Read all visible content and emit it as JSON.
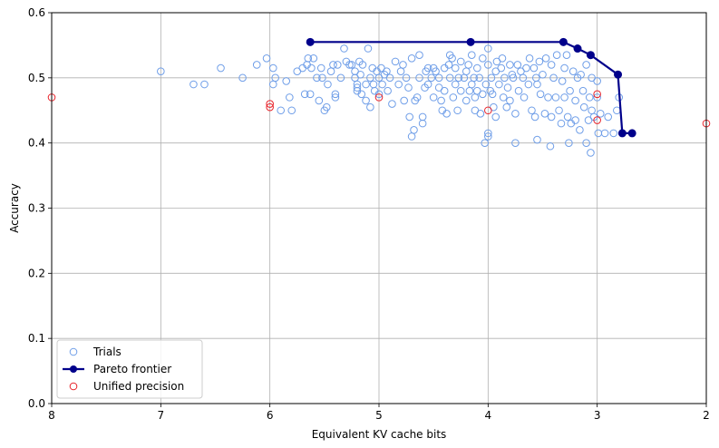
{
  "chart_data": {
    "type": "scatter",
    "title": "",
    "xlabel": "Equivalent KV cache bits",
    "ylabel": "Accuracy",
    "xlim": [
      8,
      2
    ],
    "ylim": [
      0,
      0.6
    ],
    "x_reversed": true,
    "grid": true,
    "legend_position": "bottom-left",
    "x_ticks": [
      8,
      7,
      6,
      5,
      4,
      3,
      2
    ],
    "y_ticks": [
      0.0,
      0.1,
      0.2,
      0.3,
      0.4,
      0.5,
      0.6
    ],
    "x_tick_labels": [
      "8",
      "7",
      "6",
      "5",
      "4",
      "3",
      "2"
    ],
    "y_tick_labels": [
      "0.0",
      "0.1",
      "0.2",
      "0.3",
      "0.4",
      "0.5",
      "0.6"
    ],
    "series": [
      {
        "name": "Trials",
        "style": "hollow-circle",
        "color": "#6f9ee8",
        "points": [
          [
            7.0,
            0.51
          ],
          [
            6.7,
            0.49
          ],
          [
            6.6,
            0.49
          ],
          [
            6.45,
            0.515
          ],
          [
            6.25,
            0.5
          ],
          [
            6.12,
            0.52
          ],
          [
            6.03,
            0.53
          ],
          [
            5.97,
            0.515
          ],
          [
            5.97,
            0.49
          ],
          [
            5.95,
            0.5
          ],
          [
            5.9,
            0.45
          ],
          [
            5.85,
            0.495
          ],
          [
            5.82,
            0.47
          ],
          [
            5.8,
            0.45
          ],
          [
            5.75,
            0.51
          ],
          [
            5.7,
            0.515
          ],
          [
            5.68,
            0.475
          ],
          [
            5.66,
            0.52
          ],
          [
            5.65,
            0.53
          ],
          [
            5.63,
            0.475
          ],
          [
            5.62,
            0.515
          ],
          [
            5.6,
            0.53
          ],
          [
            5.57,
            0.5
          ],
          [
            5.55,
            0.465
          ],
          [
            5.53,
            0.515
          ],
          [
            5.52,
            0.5
          ],
          [
            5.5,
            0.45
          ],
          [
            5.48,
            0.455
          ],
          [
            5.47,
            0.49
          ],
          [
            5.44,
            0.51
          ],
          [
            5.42,
            0.52
          ],
          [
            5.4,
            0.475
          ],
          [
            5.4,
            0.47
          ],
          [
            5.38,
            0.52
          ],
          [
            5.35,
            0.5
          ],
          [
            5.32,
            0.545
          ],
          [
            5.3,
            0.525
          ],
          [
            5.27,
            0.52
          ],
          [
            5.25,
            0.52
          ],
          [
            5.22,
            0.51
          ],
          [
            5.22,
            0.5
          ],
          [
            5.2,
            0.49
          ],
          [
            5.2,
            0.48
          ],
          [
            5.2,
            0.485
          ],
          [
            5.18,
            0.525
          ],
          [
            5.17,
            0.505
          ],
          [
            5.16,
            0.475
          ],
          [
            5.15,
            0.52
          ],
          [
            5.12,
            0.49
          ],
          [
            5.12,
            0.465
          ],
          [
            5.1,
            0.545
          ],
          [
            5.08,
            0.5
          ],
          [
            5.08,
            0.455
          ],
          [
            5.06,
            0.515
          ],
          [
            5.05,
            0.49
          ],
          [
            5.04,
            0.48
          ],
          [
            5.02,
            0.51
          ],
          [
            5.0,
            0.475
          ],
          [
            5.0,
            0.5
          ],
          [
            4.98,
            0.515
          ],
          [
            4.97,
            0.49
          ],
          [
            4.95,
            0.505
          ],
          [
            4.93,
            0.51
          ],
          [
            4.92,
            0.48
          ],
          [
            4.9,
            0.5
          ],
          [
            4.88,
            0.46
          ],
          [
            4.85,
            0.525
          ],
          [
            4.82,
            0.49
          ],
          [
            4.8,
            0.51
          ],
          [
            4.78,
            0.52
          ],
          [
            4.77,
            0.465
          ],
          [
            4.75,
            0.5
          ],
          [
            4.73,
            0.485
          ],
          [
            4.72,
            0.44
          ],
          [
            4.7,
            0.53
          ],
          [
            4.7,
            0.41
          ],
          [
            4.68,
            0.42
          ],
          [
            4.67,
            0.465
          ],
          [
            4.65,
            0.47
          ],
          [
            4.63,
            0.535
          ],
          [
            4.63,
            0.5
          ],
          [
            4.6,
            0.43
          ],
          [
            4.6,
            0.44
          ],
          [
            4.58,
            0.485
          ],
          [
            4.57,
            0.51
          ],
          [
            4.55,
            0.515
          ],
          [
            4.55,
            0.49
          ],
          [
            4.52,
            0.5
          ],
          [
            4.5,
            0.47
          ],
          [
            4.5,
            0.515
          ],
          [
            4.48,
            0.51
          ],
          [
            4.45,
            0.5
          ],
          [
            4.45,
            0.485
          ],
          [
            4.43,
            0.465
          ],
          [
            4.42,
            0.45
          ],
          [
            4.4,
            0.515
          ],
          [
            4.4,
            0.48
          ],
          [
            4.38,
            0.445
          ],
          [
            4.36,
            0.52
          ],
          [
            4.35,
            0.535
          ],
          [
            4.35,
            0.5
          ],
          [
            4.33,
            0.53
          ],
          [
            4.32,
            0.47
          ],
          [
            4.3,
            0.515
          ],
          [
            4.3,
            0.49
          ],
          [
            4.28,
            0.45
          ],
          [
            4.27,
            0.5
          ],
          [
            4.25,
            0.525
          ],
          [
            4.25,
            0.48
          ],
          [
            4.22,
            0.5
          ],
          [
            4.2,
            0.51
          ],
          [
            4.2,
            0.465
          ],
          [
            4.18,
            0.52
          ],
          [
            4.17,
            0.48
          ],
          [
            4.15,
            0.535
          ],
          [
            4.15,
            0.49
          ],
          [
            4.13,
            0.5
          ],
          [
            4.12,
            0.45
          ],
          [
            4.12,
            0.47
          ],
          [
            4.1,
            0.515
          ],
          [
            4.1,
            0.48
          ],
          [
            4.08,
            0.5
          ],
          [
            4.07,
            0.445
          ],
          [
            4.05,
            0.53
          ],
          [
            4.05,
            0.475
          ],
          [
            4.03,
            0.4
          ],
          [
            4.02,
            0.49
          ],
          [
            4.0,
            0.545
          ],
          [
            4.0,
            0.52
          ],
          [
            4.0,
            0.41
          ],
          [
            4.0,
            0.415
          ],
          [
            3.98,
            0.48
          ],
          [
            3.97,
            0.5
          ],
          [
            3.96,
            0.475
          ],
          [
            3.95,
            0.455
          ],
          [
            3.93,
            0.51
          ],
          [
            3.93,
            0.44
          ],
          [
            3.92,
            0.525
          ],
          [
            3.9,
            0.49
          ],
          [
            3.88,
            0.515
          ],
          [
            3.87,
            0.53
          ],
          [
            3.86,
            0.47
          ],
          [
            3.85,
            0.5
          ],
          [
            3.83,
            0.455
          ],
          [
            3.82,
            0.485
          ],
          [
            3.8,
            0.52
          ],
          [
            3.8,
            0.465
          ],
          [
            3.78,
            0.505
          ],
          [
            3.77,
            0.5
          ],
          [
            3.75,
            0.4
          ],
          [
            3.75,
            0.445
          ],
          [
            3.73,
            0.52
          ],
          [
            3.72,
            0.48
          ],
          [
            3.7,
            0.51
          ],
          [
            3.68,
            0.5
          ],
          [
            3.67,
            0.47
          ],
          [
            3.65,
            0.515
          ],
          [
            3.63,
            0.49
          ],
          [
            3.62,
            0.53
          ],
          [
            3.6,
            0.45
          ],
          [
            3.58,
            0.515
          ],
          [
            3.57,
            0.44
          ],
          [
            3.56,
            0.5
          ],
          [
            3.55,
            0.49
          ],
          [
            3.55,
            0.405
          ],
          [
            3.53,
            0.525
          ],
          [
            3.52,
            0.475
          ],
          [
            3.5,
            0.505
          ],
          [
            3.48,
            0.445
          ],
          [
            3.47,
            0.53
          ],
          [
            3.45,
            0.47
          ],
          [
            3.43,
            0.395
          ],
          [
            3.42,
            0.52
          ],
          [
            3.42,
            0.44
          ],
          [
            3.4,
            0.5
          ],
          [
            3.38,
            0.47
          ],
          [
            3.37,
            0.535
          ],
          [
            3.35,
            0.45
          ],
          [
            3.33,
            0.43
          ],
          [
            3.32,
            0.495
          ],
          [
            3.3,
            0.515
          ],
          [
            3.3,
            0.47
          ],
          [
            3.28,
            0.535
          ],
          [
            3.27,
            0.44
          ],
          [
            3.26,
            0.4
          ],
          [
            3.25,
            0.48
          ],
          [
            3.24,
            0.43
          ],
          [
            3.22,
            0.51
          ],
          [
            3.2,
            0.465
          ],
          [
            3.2,
            0.435
          ],
          [
            3.18,
            0.5
          ],
          [
            3.16,
            0.42
          ],
          [
            3.15,
            0.505
          ],
          [
            3.13,
            0.48
          ],
          [
            3.12,
            0.455
          ],
          [
            3.1,
            0.52
          ],
          [
            3.1,
            0.4
          ],
          [
            3.08,
            0.435
          ],
          [
            3.07,
            0.47
          ],
          [
            3.06,
            0.385
          ],
          [
            3.05,
            0.45
          ],
          [
            3.05,
            0.5
          ],
          [
            3.03,
            0.44
          ],
          [
            3.0,
            0.495
          ],
          [
            3.0,
            0.47
          ],
          [
            2.99,
            0.415
          ],
          [
            2.97,
            0.445
          ],
          [
            2.93,
            0.415
          ],
          [
            2.9,
            0.44
          ],
          [
            2.85,
            0.415
          ],
          [
            2.82,
            0.45
          ],
          [
            2.8,
            0.47
          ]
        ]
      },
      {
        "name": "Pareto frontier",
        "style": "line-with-filled-markers",
        "color": "#00008b",
        "points": [
          [
            5.63,
            0.555
          ],
          [
            4.16,
            0.555
          ],
          [
            3.31,
            0.555
          ],
          [
            3.18,
            0.545
          ],
          [
            3.06,
            0.535
          ],
          [
            2.81,
            0.505
          ],
          [
            2.77,
            0.415
          ],
          [
            2.68,
            0.415
          ]
        ]
      },
      {
        "name": "Unified precision",
        "style": "hollow-circle",
        "color": "#e8232a",
        "points": [
          [
            8.0,
            0.47
          ],
          [
            6.0,
            0.46
          ],
          [
            6.0,
            0.455
          ],
          [
            5.0,
            0.47
          ],
          [
            4.0,
            0.45
          ],
          [
            3.0,
            0.475
          ],
          [
            3.0,
            0.435
          ],
          [
            2.0,
            0.43
          ]
        ]
      }
    ]
  }
}
